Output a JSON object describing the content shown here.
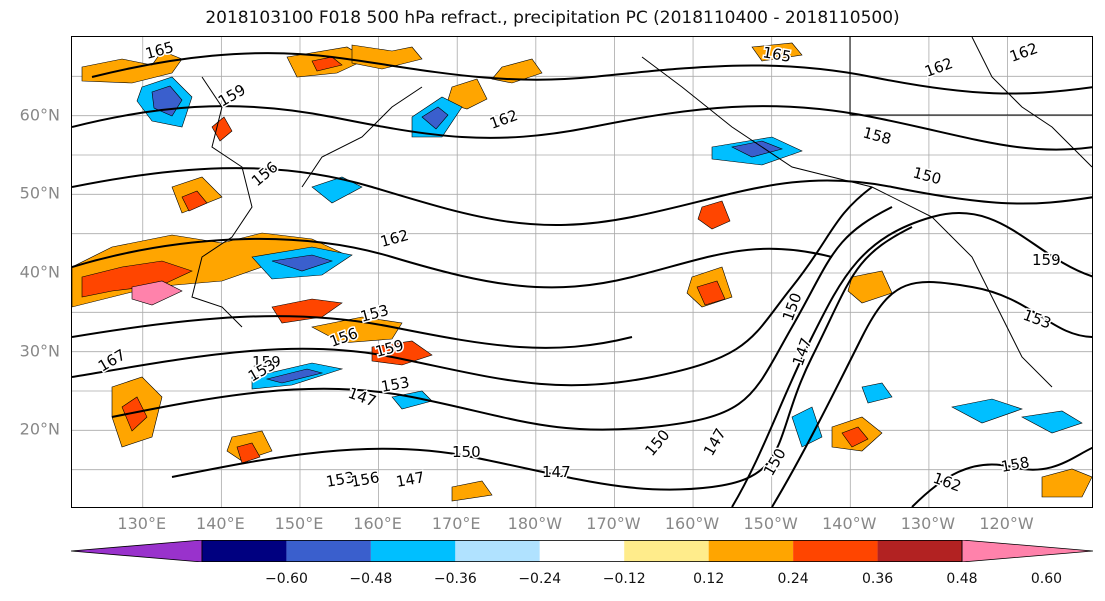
{
  "title": "2018103100 F018 500 hPa refract., precipitation PC (2018110400 - 2018110500)",
  "map": {
    "lat_labels": [
      {
        "text": "60°N",
        "lat": 60
      },
      {
        "text": "50°N",
        "lat": 50
      },
      {
        "text": "40°N",
        "lat": 40
      },
      {
        "text": "30°N",
        "lat": 30
      },
      {
        "text": "20°N",
        "lat": 20
      }
    ],
    "lon_labels": [
      {
        "text": "130°E",
        "lon": 130
      },
      {
        "text": "140°E",
        "lon": 140
      },
      {
        "text": "150°E",
        "lon": 150
      },
      {
        "text": "160°E",
        "lon": 160
      },
      {
        "text": "170°E",
        "lon": 170
      },
      {
        "text": "180°W",
        "lon": 180
      },
      {
        "text": "170°W",
        "lon": 190
      },
      {
        "text": "160°W",
        "lon": 200
      },
      {
        "text": "150°W",
        "lon": 210
      },
      {
        "text": "140°W",
        "lon": 220
      },
      {
        "text": "130°W",
        "lon": 230
      },
      {
        "text": "120°W",
        "lon": 240
      }
    ],
    "lon_range": [
      121,
      251
    ],
    "lat_range": [
      10,
      70
    ],
    "contour_labels": [
      "165",
      "159",
      "156",
      "162",
      "165",
      "162",
      "162",
      "158",
      "150",
      "162",
      "159",
      "153",
      "150",
      "147",
      "153",
      "159",
      "156",
      "159",
      "153",
      "167",
      "147",
      "150",
      "147",
      "150",
      "147",
      "153",
      "156",
      "147",
      "150",
      "158",
      "162",
      "153"
    ]
  },
  "colorbar": {
    "colors": [
      "#9932cc",
      "#000080",
      "#3a5fcd",
      "#00bfff",
      "#b0e2ff",
      "#ffffff",
      "#ffec8b",
      "#ffa500",
      "#ff4500",
      "#b22222",
      "#ff82ab"
    ],
    "tick_labels": [
      "−0.60",
      "−0.48",
      "−0.36",
      "−0.24",
      "−0.12",
      "0.12",
      "0.24",
      "0.36",
      "0.48",
      "0.60"
    ]
  }
}
